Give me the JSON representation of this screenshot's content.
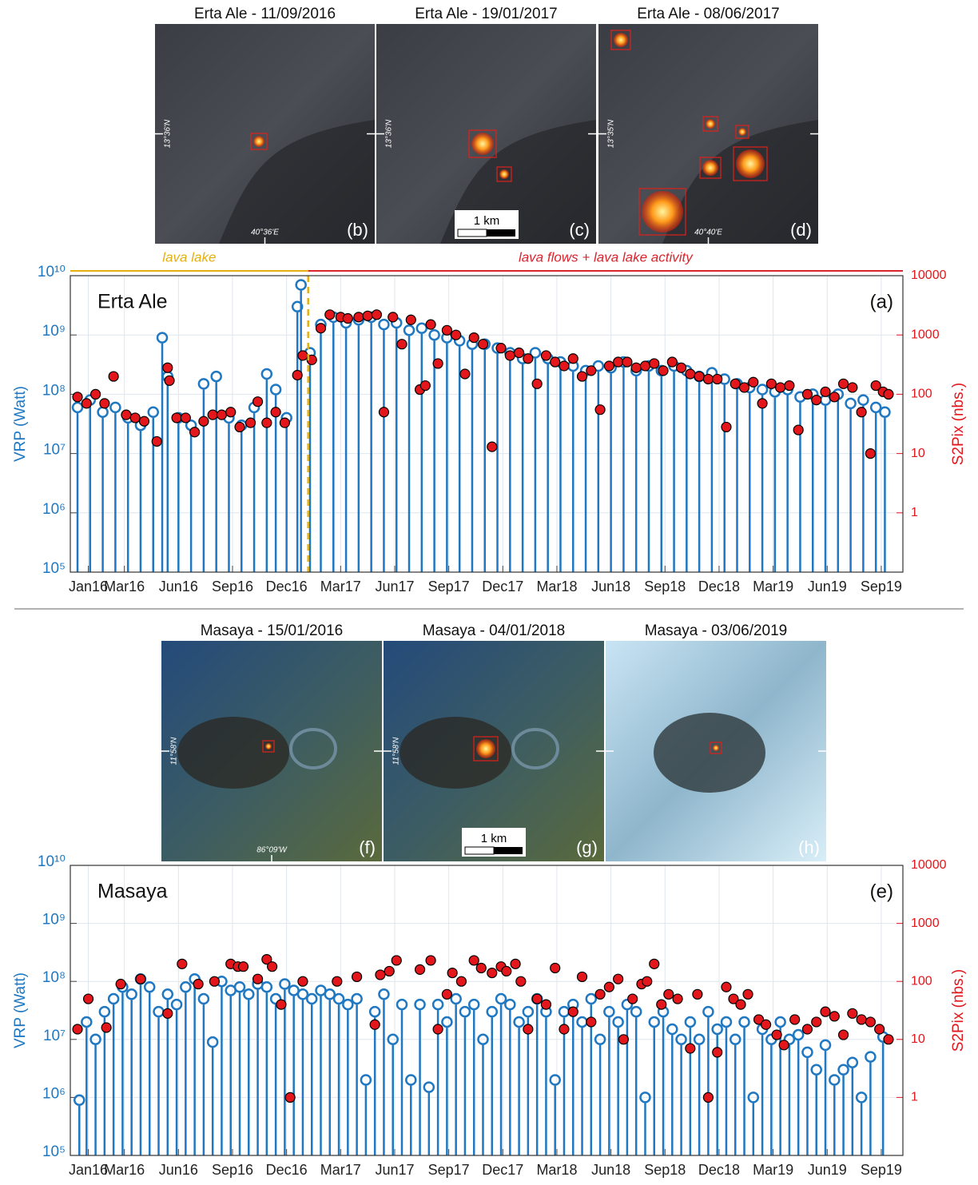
{
  "images": [
    {
      "title": "Erta Ale - 11/09/2016",
      "label": "(b)",
      "lat": "13°36'N",
      "lon": "40°36'E"
    },
    {
      "title": "Erta Ale - 19/01/2017",
      "label": "(c)",
      "lat": "13°36'N",
      "scale": "1 km"
    },
    {
      "title": "Erta Ale - 08/06/2017",
      "label": "(d)",
      "lat": "13°35'N",
      "lon": "40°40'E"
    },
    {
      "title": "Masaya - 15/01/2016",
      "label": "(f)",
      "lat": "11°58'N",
      "lon": "86°09'W"
    },
    {
      "title": "Masaya - 04/01/2018",
      "label": "(g)",
      "lat": "11°58'N",
      "scale": "1 km"
    },
    {
      "title": "Masaya - 03/06/2019",
      "label": "(h)"
    }
  ],
  "chart_data": [
    {
      "type": "stem",
      "title": "Erta Ale",
      "panel_label": "(a)",
      "y_label": "VRP (Watt)",
      "y2_label": "S2Pix (nbs.)",
      "log_scale": true,
      "grid": true,
      "annotations": [
        {
          "text": "lava lake",
          "color": "#e5b012"
        },
        {
          "text": "lava flows + lava lake activity",
          "color": "#d9262e"
        }
      ],
      "vline": {
        "x": 12.2,
        "color": "#e5b012"
      },
      "xlim": [
        -1,
        45.2
      ],
      "xticks": [
        {
          "value": 0,
          "label": "Jan16"
        },
        {
          "value": 2,
          "label": "Mar16"
        },
        {
          "value": 5,
          "label": "Jun16"
        },
        {
          "value": 8,
          "label": "Sep16"
        },
        {
          "value": 11,
          "label": "Dec16"
        },
        {
          "value": 14,
          "label": "Mar17"
        },
        {
          "value": 17,
          "label": "Jun17"
        },
        {
          "value": 20,
          "label": "Sep17"
        },
        {
          "value": 23,
          "label": "Dec17"
        },
        {
          "value": 26,
          "label": "Mar18"
        },
        {
          "value": 29,
          "label": "Jun18"
        },
        {
          "value": 32,
          "label": "Sep18"
        },
        {
          "value": 35,
          "label": "Dec18"
        },
        {
          "value": 38,
          "label": "Mar19"
        },
        {
          "value": 41,
          "label": "Jun19"
        },
        {
          "value": 44,
          "label": "Sep19"
        }
      ],
      "ylim": [
        100000.0,
        10000000000.0
      ],
      "yticks": [
        {
          "value": 100000.0,
          "label": "10⁵"
        },
        {
          "value": 1000000.0,
          "label": "10⁶"
        },
        {
          "value": 10000000.0,
          "label": "10⁷"
        },
        {
          "value": 100000000.0,
          "label": "10⁸"
        },
        {
          "value": 1000000000.0,
          "label": "10⁹"
        },
        {
          "value": 10000000000.0,
          "label": "10¹⁰"
        }
      ],
      "y2lim": [
        0.1,
        10000
      ],
      "y2ticks": [
        1,
        10,
        100,
        1000,
        10000
      ],
      "series": [
        {
          "color": "#1f78c1",
          "axis": "y",
          "x": [
            -0.6,
            0.1,
            0.8,
            1.5,
            2.2,
            2.9,
            3.6,
            4.1,
            4.4,
            5.0,
            5.7,
            6.4,
            7.1,
            7.8,
            8.5,
            9.2,
            9.9,
            10.4,
            11.0,
            11.6,
            11.8,
            12.3,
            12.9,
            13.6,
            14.3,
            15.0,
            15.7,
            16.4,
            17.1,
            17.8,
            18.5,
            19.2,
            19.9,
            20.6,
            21.3,
            22.0,
            22.7,
            23.4,
            24.1,
            24.8,
            25.5,
            26.2,
            26.9,
            27.6,
            28.3,
            29.0,
            29.7,
            30.4,
            31.1,
            31.8,
            32.5,
            33.2,
            33.9,
            34.6,
            35.3,
            36.0,
            36.7,
            37.4,
            38.1,
            38.8,
            39.5,
            40.2,
            40.9,
            41.6,
            42.3,
            43.0,
            43.7,
            44.2
          ],
          "values": [
            60000000.0,
            80000000.0,
            50000000.0,
            60000000.0,
            40000000.0,
            30000000.0,
            50000000.0,
            900000000.0,
            200000000.0,
            40000000.0,
            30000000.0,
            150000000.0,
            200000000.0,
            40000000.0,
            30000000.0,
            60000000.0,
            220000000.0,
            120000000.0,
            40000000.0,
            3000000000.0,
            7000000000.0,
            500000000.0,
            1500000000.0,
            2000000000.0,
            1600000000.0,
            1800000000.0,
            2000000000.0,
            1500000000.0,
            1600000000.0,
            1200000000.0,
            1300000000.0,
            1000000000.0,
            900000000.0,
            800000000.0,
            700000000.0,
            700000000.0,
            600000000.0,
            500000000.0,
            400000000.0,
            500000000.0,
            400000000.0,
            350000000.0,
            300000000.0,
            250000000.0,
            300000000.0,
            280000000.0,
            350000000.0,
            250000000.0,
            300000000.0,
            250000000.0,
            300000000.0,
            250000000.0,
            200000000.0,
            230000000.0,
            180000000.0,
            150000000.0,
            130000000.0,
            120000000.0,
            110000000.0,
            120000000.0,
            90000000.0,
            100000000.0,
            80000000.0,
            100000000.0,
            70000000.0,
            80000000.0,
            60000000.0,
            50000000.0
          ]
        },
        {
          "color": "#e3161c",
          "axis": "y2",
          "x": [
            -0.6,
            -0.1,
            0.4,
            0.9,
            1.4,
            2.1,
            2.6,
            3.1,
            3.8,
            4.4,
            4.5,
            4.9,
            5.4,
            5.9,
            6.4,
            6.9,
            7.4,
            7.9,
            8.4,
            9.0,
            9.4,
            9.9,
            10.4,
            10.9,
            11.6,
            11.9,
            12.4,
            12.9,
            13.4,
            14.0,
            14.4,
            15.0,
            15.5,
            16.0,
            16.4,
            16.9,
            17.4,
            17.9,
            18.4,
            18.7,
            19.0,
            19.4,
            19.9,
            20.4,
            20.9,
            21.4,
            21.9,
            22.4,
            22.9,
            23.4,
            23.9,
            24.4,
            24.9,
            25.4,
            25.9,
            26.4,
            26.9,
            27.4,
            27.9,
            28.4,
            28.9,
            29.4,
            29.9,
            30.4,
            30.9,
            31.4,
            31.9,
            32.4,
            32.9,
            33.4,
            33.9,
            34.4,
            34.9,
            35.4,
            35.9,
            36.4,
            36.9,
            37.4,
            37.9,
            38.4,
            38.9,
            39.4,
            39.9,
            40.4,
            40.9,
            41.4,
            41.9,
            42.4,
            42.9,
            43.4,
            43.7,
            44.1,
            44.4
          ],
          "values": [
            90,
            70,
            100,
            70,
            200,
            45,
            40,
            35,
            16,
            280,
            170,
            40,
            40,
            23,
            35,
            45,
            45,
            50,
            28,
            33,
            75,
            33,
            50,
            33,
            210,
            450,
            380,
            1300,
            2200,
            2000,
            1900,
            2000,
            2100,
            2200,
            50,
            2000,
            700,
            1800,
            120,
            140,
            1500,
            330,
            1200,
            1000,
            220,
            900,
            700,
            13,
            600,
            450,
            500,
            400,
            150,
            450,
            350,
            300,
            400,
            200,
            250,
            55,
            300,
            350,
            350,
            280,
            300,
            330,
            250,
            350,
            280,
            220,
            200,
            180,
            180,
            28,
            150,
            130,
            160,
            70,
            150,
            130,
            140,
            25,
            100,
            80,
            110,
            90,
            150,
            130,
            50,
            10,
            140,
            110,
            100
          ]
        }
      ]
    },
    {
      "type": "stem",
      "title": "Masaya",
      "panel_label": "(e)",
      "y_label": "VRP (Watt)",
      "y2_label": "S2Pix (nbs.)",
      "log_scale": true,
      "grid": true,
      "xlim": [
        -1,
        45.2
      ],
      "xticks": [
        {
          "value": 0,
          "label": "Jan16"
        },
        {
          "value": 2,
          "label": "Mar16"
        },
        {
          "value": 5,
          "label": "Jun16"
        },
        {
          "value": 8,
          "label": "Sep16"
        },
        {
          "value": 11,
          "label": "Dec16"
        },
        {
          "value": 14,
          "label": "Mar17"
        },
        {
          "value": 17,
          "label": "Jun17"
        },
        {
          "value": 20,
          "label": "Sep17"
        },
        {
          "value": 23,
          "label": "Dec17"
        },
        {
          "value": 26,
          "label": "Mar18"
        },
        {
          "value": 29,
          "label": "Jun18"
        },
        {
          "value": 32,
          "label": "Sep18"
        },
        {
          "value": 35,
          "label": "Dec18"
        },
        {
          "value": 38,
          "label": "Mar19"
        },
        {
          "value": 41,
          "label": "Jun19"
        },
        {
          "value": 44,
          "label": "Sep19"
        }
      ],
      "ylim": [
        100000.0,
        10000000000.0
      ],
      "yticks": [
        {
          "value": 100000.0,
          "label": "10⁵"
        },
        {
          "value": 1000000.0,
          "label": "10⁶"
        },
        {
          "value": 10000000.0,
          "label": "10⁷"
        },
        {
          "value": 100000000.0,
          "label": "10⁸"
        },
        {
          "value": 1000000000.0,
          "label": "10⁹"
        },
        {
          "value": 10000000000.0,
          "label": "10¹⁰"
        }
      ],
      "y2lim": [
        0.1,
        10000
      ],
      "y2ticks": [
        1,
        10,
        100,
        1000,
        10000
      ],
      "series": [
        {
          "color": "#1f78c1",
          "axis": "y",
          "x": [
            -0.5,
            -0.1,
            0.4,
            0.9,
            1.4,
            1.9,
            2.4,
            2.9,
            3.4,
            3.9,
            4.4,
            4.9,
            5.4,
            5.9,
            6.4,
            6.9,
            7.4,
            7.9,
            8.4,
            8.9,
            9.4,
            9.9,
            10.4,
            10.9,
            11.4,
            11.9,
            12.4,
            12.9,
            13.4,
            13.9,
            14.4,
            14.9,
            15.4,
            15.9,
            16.4,
            16.9,
            17.4,
            17.9,
            18.4,
            18.9,
            19.4,
            19.9,
            20.4,
            20.9,
            21.4,
            21.9,
            22.4,
            22.9,
            23.4,
            23.9,
            24.4,
            24.9,
            25.4,
            25.9,
            26.4,
            26.9,
            27.4,
            27.9,
            28.4,
            28.9,
            29.4,
            29.9,
            30.4,
            30.9,
            31.4,
            31.9,
            32.4,
            32.9,
            33.4,
            33.9,
            34.4,
            34.9,
            35.4,
            35.9,
            36.4,
            36.9,
            37.4,
            37.9,
            38.4,
            38.9,
            39.4,
            39.9,
            40.4,
            40.9,
            41.4,
            41.9,
            42.4,
            42.9,
            43.4,
            44.1
          ],
          "values": [
            900000.0,
            20000000.0,
            10000000.0,
            30000000.0,
            50000000.0,
            80000000.0,
            60000000.0,
            110000000.0,
            80000000.0,
            30000000.0,
            60000000.0,
            40000000.0,
            80000000.0,
            110000000.0,
            50000000.0,
            9000000.0,
            100000000.0,
            70000000.0,
            80000000.0,
            60000000.0,
            90000000.0,
            80000000.0,
            50000000.0,
            90000000.0,
            70000000.0,
            60000000.0,
            50000000.0,
            70000000.0,
            60000000.0,
            50000000.0,
            40000000.0,
            50000000.0,
            2000000.0,
            30000000.0,
            60000000.0,
            10000000.0,
            40000000.0,
            2000000.0,
            40000000.0,
            1500000.0,
            40000000.0,
            20000000.0,
            50000000.0,
            30000000.0,
            40000000.0,
            10000000.0,
            30000000.0,
            50000000.0,
            40000000.0,
            20000000.0,
            30000000.0,
            50000000.0,
            30000000.0,
            2000000.0,
            30000000.0,
            40000000.0,
            20000000.0,
            50000000.0,
            10000000.0,
            30000000.0,
            20000000.0,
            40000000.0,
            30000000.0,
            1000000.0,
            20000000.0,
            30000000.0,
            15000000.0,
            10000000.0,
            20000000.0,
            10000000.0,
            30000000.0,
            15000000.0,
            20000000.0,
            10000000.0,
            20000000.0,
            1000000.0,
            15000000.0,
            10000000.0,
            20000000.0,
            10000000.0,
            12000000.0,
            6000000.0,
            3000000.0,
            8000000.0,
            2000000.0,
            3000000.0,
            4000000.0,
            1000000.0,
            5000000.0,
            11000000.0
          ]
        },
        {
          "color": "#e3161c",
          "axis": "y2",
          "x": [
            -0.6,
            0.0,
            1.0,
            1.8,
            2.9,
            4.4,
            5.2,
            6.1,
            7.0,
            7.9,
            8.3,
            8.6,
            9.4,
            9.9,
            10.2,
            10.7,
            11.2,
            11.9,
            13.8,
            14.9,
            15.9,
            16.2,
            16.7,
            17.1,
            18.4,
            19.0,
            19.4,
            19.9,
            20.2,
            20.7,
            21.4,
            21.8,
            22.4,
            22.9,
            23.2,
            23.7,
            24.0,
            24.4,
            24.9,
            25.4,
            25.9,
            26.4,
            26.9,
            27.4,
            27.9,
            28.4,
            28.9,
            29.4,
            29.7,
            30.2,
            30.7,
            31.0,
            31.4,
            31.8,
            32.2,
            32.7,
            33.4,
            33.8,
            34.4,
            34.9,
            35.4,
            35.8,
            36.2,
            36.6,
            37.2,
            37.6,
            38.2,
            38.6,
            39.2,
            39.9,
            40.4,
            40.9,
            41.4,
            41.9,
            42.4,
            42.9,
            43.4,
            43.9,
            44.4
          ],
          "values": [
            15,
            50,
            16,
            90,
            110,
            28,
            200,
            90,
            100,
            200,
            180,
            180,
            110,
            240,
            180,
            40,
            1,
            100,
            100,
            120,
            18,
            130,
            150,
            230,
            160,
            230,
            15,
            60,
            140,
            100,
            230,
            170,
            140,
            180,
            150,
            200,
            100,
            15,
            50,
            40,
            170,
            15,
            30,
            120,
            20,
            60,
            80,
            110,
            10,
            50,
            90,
            100,
            200,
            40,
            60,
            50,
            7,
            60,
            1,
            6,
            80,
            50,
            40,
            60,
            22,
            18,
            12,
            8,
            22,
            15,
            20,
            30,
            25,
            12,
            28,
            22,
            20,
            15,
            10
          ]
        }
      ]
    }
  ]
}
